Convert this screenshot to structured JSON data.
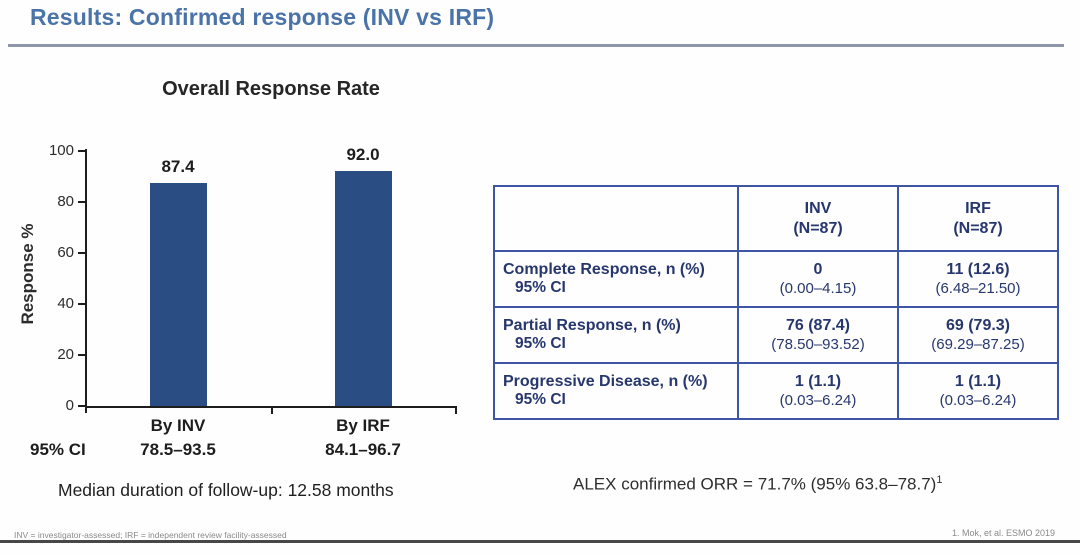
{
  "slide": {
    "title": "Results: Confirmed response (INV vs IRF)",
    "median_followup": "Median duration of follow-up: 12.58 months",
    "orr_note": "ALEX confirmed ORR = 71.7% (95% 63.8–78.7)",
    "orr_note_sup": "1",
    "footnote_left": "INV = investigator-assessed; IRF = independent review facility-assessed",
    "footnote_right": "1. Mok, et al. ESMO 2019"
  },
  "chart_data": {
    "type": "bar",
    "title": "Overall Response Rate",
    "ylabel": "Response %",
    "xlabel": "",
    "ylim": [
      0,
      100
    ],
    "yticks": [
      0,
      20,
      40,
      60,
      80,
      100
    ],
    "categories": [
      "By INV",
      "By IRF"
    ],
    "values": [
      87.4,
      92.0
    ],
    "value_labels": [
      "87.4",
      "92.0"
    ],
    "ci_row_label": "95% CI",
    "ci_values": [
      "78.5–93.5",
      "84.1–96.7"
    ],
    "bar_color": "#2a4d84",
    "grid": false,
    "legend": "none"
  },
  "table": {
    "border_color": "#3e55a6",
    "header": {
      "col1": "",
      "col2_line1": "INV",
      "col2_line2": "(N=87)",
      "col3_line1": "IRF",
      "col3_line2": "(N=87)"
    },
    "rows": [
      {
        "label": "Complete Response, n (%)",
        "sub_label": "95% CI",
        "inv": "0",
        "inv_ci": "(0.00–4.15)",
        "irf": "11 (12.6)",
        "irf_ci": "(6.48–21.50)"
      },
      {
        "label": "Partial Response, n (%)",
        "sub_label": "95% CI",
        "inv": "76 (87.4)",
        "inv_ci": "(78.50–93.52)",
        "irf": "69 (79.3)",
        "irf_ci": "(69.29–87.25)"
      },
      {
        "label": "Progressive Disease, n (%)",
        "sub_label": "95% CI",
        "inv": "1 (1.1)",
        "inv_ci": "(0.03–6.24)",
        "irf": "1 (1.1)",
        "irf_ci": "(0.03–6.24)"
      }
    ]
  }
}
